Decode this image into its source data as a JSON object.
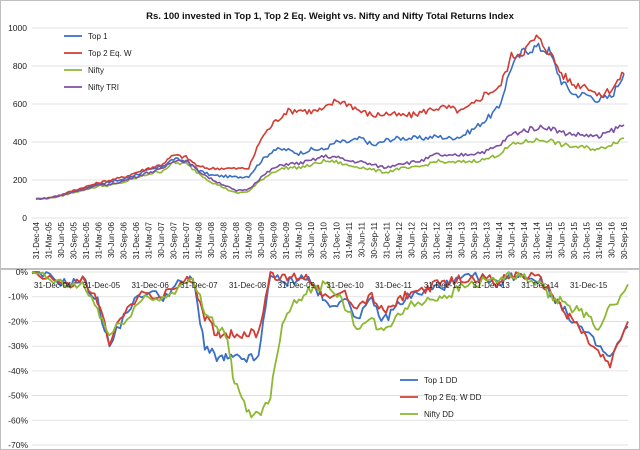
{
  "chart_data": [
    {
      "type": "line",
      "title": "Rs. 100 invested in Top 1, Top 2 Eq. Weight vs. Nifty and Nifty Total Returns Index",
      "xlabel": "",
      "ylabel": "",
      "ylim": [
        0,
        1000
      ],
      "yticks": [
        "0",
        "200",
        "400",
        "600",
        "800",
        "1000"
      ],
      "legend_position": "top-left",
      "grid": true,
      "categories": [
        "31-Dec-04",
        "31-Mar-05",
        "30-Jun-05",
        "30-Sep-05",
        "31-Dec-05",
        "31-Mar-06",
        "30-Jun-06",
        "30-Sep-06",
        "31-Dec-06",
        "31-Mar-07",
        "30-Jun-07",
        "30-Sep-07",
        "31-Dec-07",
        "31-Mar-08",
        "30-Jun-08",
        "30-Sep-08",
        "31-Dec-08",
        "31-Mar-09",
        "30-Jun-09",
        "30-Sep-09",
        "31-Dec-09",
        "31-Mar-10",
        "30-Jun-10",
        "30-Sep-10",
        "31-Dec-10",
        "31-Mar-11",
        "30-Jun-11",
        "30-Sep-11",
        "31-Dec-11",
        "31-Mar-12",
        "30-Jun-12",
        "30-Sep-12",
        "31-Dec-12",
        "31-Mar-13",
        "30-Jun-13",
        "30-Sep-13",
        "31-Dec-13",
        "31-Mar-14",
        "30-Jun-14",
        "30-Sep-14",
        "31-Dec-14",
        "31-Mar-15",
        "30-Jun-15",
        "30-Sep-15",
        "31-Dec-15",
        "31-Mar-16",
        "30-Jun-16",
        "30-Sep-16"
      ],
      "series": [
        {
          "name": "Top 1",
          "color": "#3a6fc4",
          "values": [
            100,
            105,
            120,
            140,
            160,
            180,
            190,
            205,
            230,
            250,
            270,
            310,
            300,
            250,
            225,
            220,
            215,
            220,
            300,
            360,
            360,
            340,
            360,
            360,
            400,
            400,
            420,
            380,
            410,
            420,
            420,
            420,
            430,
            420,
            430,
            470,
            520,
            580,
            800,
            880,
            900,
            880,
            720,
            650,
            650,
            620,
            640,
            760
          ]
        },
        {
          "name": "Top 2 Eq. W",
          "color": "#d23c32",
          "values": [
            100,
            106,
            122,
            145,
            165,
            185,
            200,
            215,
            240,
            262,
            280,
            330,
            320,
            270,
            260,
            262,
            260,
            262,
            420,
            500,
            560,
            570,
            560,
            570,
            620,
            600,
            560,
            540,
            550,
            540,
            540,
            560,
            580,
            580,
            560,
            600,
            660,
            680,
            850,
            880,
            950,
            880,
            760,
            700,
            700,
            640,
            680,
            760
          ]
        },
        {
          "name": "Nifty",
          "color": "#8db832",
          "values": [
            100,
            104,
            115,
            135,
            150,
            168,
            172,
            188,
            210,
            232,
            245,
            290,
            285,
            235,
            190,
            160,
            130,
            140,
            200,
            245,
            265,
            265,
            278,
            300,
            295,
            275,
            268,
            252,
            240,
            260,
            262,
            275,
            300,
            290,
            295,
            300,
            310,
            335,
            385,
            400,
            410,
            410,
            385,
            375,
            370,
            360,
            390,
            420
          ]
        },
        {
          "name": "Nifty TRI",
          "color": "#7d4fa5",
          "values": [
            100,
            105,
            117,
            138,
            154,
            172,
            178,
            195,
            218,
            240,
            255,
            305,
            300,
            248,
            205,
            175,
            142,
            152,
            215,
            262,
            285,
            287,
            302,
            325,
            320,
            300,
            295,
            278,
            265,
            288,
            292,
            305,
            335,
            325,
            332,
            340,
            352,
            380,
            440,
            460,
            475,
            478,
            450,
            440,
            436,
            425,
            460,
            490
          ]
        }
      ]
    },
    {
      "type": "line",
      "title": "",
      "xlabel": "",
      "ylabel": "",
      "ylim": [
        -70,
        0
      ],
      "yticks": [
        "0%",
        "-10%",
        "-20%",
        "-30%",
        "-40%",
        "-50%",
        "-60%",
        "-70%"
      ],
      "legend_position": "bottom-right",
      "grid": true,
      "categories": [
        "31-Dec-04",
        "31-Dec-05",
        "31-Dec-06",
        "31-Dec-07",
        "31-Dec-08",
        "31-Dec-09",
        "31-Dec-10",
        "31-Dec-11",
        "31-Dec-12",
        "31-Dec-13",
        "31-Dec-14",
        "31-Dec-15"
      ],
      "tick_labels": [
        "31-Dec-04",
        "31-Dec-05",
        "31-Dec-06",
        "31-Dec-07",
        "31-Dec-08",
        "31-Dec-09",
        "31-Dec-10",
        "31-Dec-11",
        "31-Dec-12",
        "31-Dec-13",
        "31-Dec-14",
        "31-Dec-15"
      ],
      "x": [
        0,
        0.03,
        0.06,
        0.085,
        0.11,
        0.13,
        0.16,
        0.19,
        0.22,
        0.245,
        0.27,
        0.29,
        0.31,
        0.325,
        0.34,
        0.36,
        0.38,
        0.4,
        0.42,
        0.44,
        0.46,
        0.48,
        0.5,
        0.52,
        0.545,
        0.57,
        0.59,
        0.61,
        0.63,
        0.66,
        0.68,
        0.7,
        0.72,
        0.75,
        0.78,
        0.8,
        0.82,
        0.85,
        0.87,
        0.89,
        0.91,
        0.93,
        0.95,
        0.97,
        1.0
      ],
      "series": [
        {
          "name": "Top 1 DD",
          "color": "#3a6fc4",
          "values": [
            0,
            -2,
            -5,
            -3,
            -12,
            -30,
            -15,
            -8,
            -10,
            -5,
            -3,
            -30,
            -35,
            -35,
            -35,
            -35,
            -35,
            0,
            -5,
            -3,
            -2,
            -8,
            -15,
            -10,
            -18,
            -12,
            -20,
            -14,
            -10,
            -8,
            -6,
            -5,
            -3,
            -2,
            -5,
            -2,
            -1,
            -3,
            -8,
            -15,
            -20,
            -25,
            -30,
            -35,
            -22
          ]
        },
        {
          "name": "Top 2 Eq. W DD",
          "color": "#d23c32",
          "values": [
            0,
            -2,
            -6,
            -3,
            -12,
            -28,
            -15,
            -8,
            -10,
            -5,
            -3,
            -18,
            -25,
            -25,
            -25,
            -25,
            -25,
            0,
            -3,
            -2,
            -2,
            -6,
            -12,
            -8,
            -14,
            -10,
            -17,
            -12,
            -9,
            -7,
            -5,
            -4,
            -3,
            -2,
            -4,
            -2,
            -1,
            -3,
            -8,
            -15,
            -20,
            -27,
            -33,
            -38,
            -20
          ]
        },
        {
          "name": "Nifty DD",
          "color": "#8db832",
          "values": [
            0,
            -3,
            -6,
            -5,
            -15,
            -26,
            -18,
            -10,
            -11,
            -6,
            -4,
            -15,
            -22,
            -25,
            -45,
            -56,
            -58,
            -50,
            -20,
            -12,
            -8,
            -6,
            -5,
            -12,
            -22,
            -20,
            -25,
            -18,
            -14,
            -12,
            -10,
            -9,
            -6,
            -4,
            -3,
            -2,
            -2,
            -5,
            -10,
            -12,
            -15,
            -18,
            -22,
            -15,
            -5
          ]
        }
      ]
    }
  ]
}
